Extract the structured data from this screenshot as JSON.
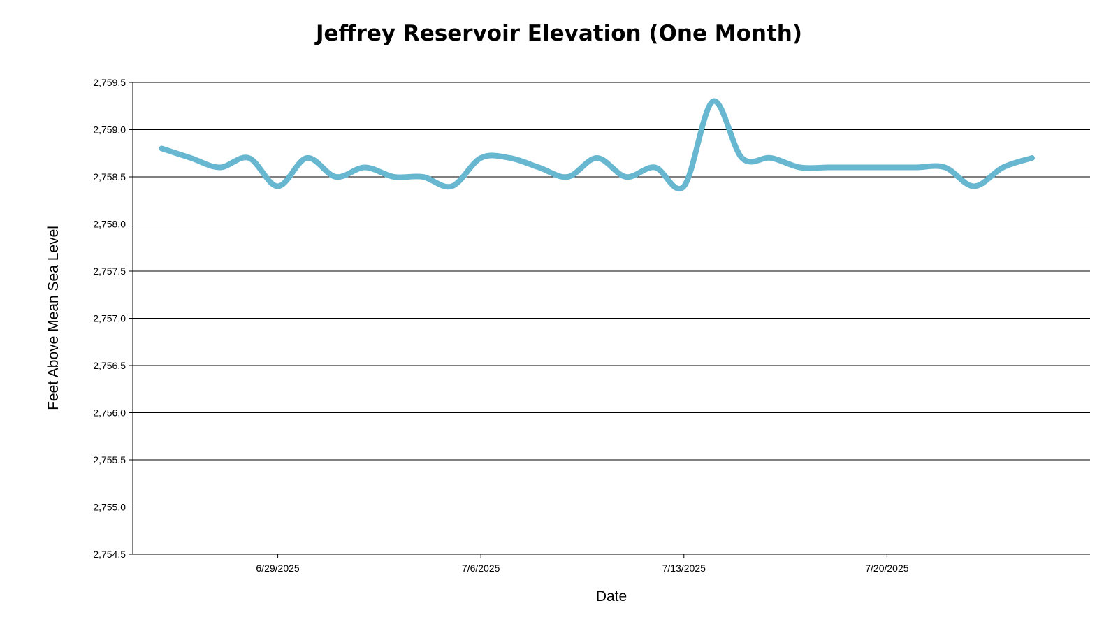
{
  "chart_data": {
    "type": "line",
    "title": "Jeffrey Reservoir Elevation (One Month)",
    "xlabel": "Date",
    "ylabel": "Feet Above Mean Sea Level",
    "ylim": [
      2754.5,
      2759.5
    ],
    "xlim": [
      "2025-06-24",
      "2025-07-27"
    ],
    "grid": "horizontal",
    "line_color": "#67b7d1",
    "yticks": [
      "2,754.5",
      "2,755.0",
      "2,755.5",
      "2,756.0",
      "2,756.5",
      "2,757.0",
      "2,757.5",
      "2,758.0",
      "2,758.5",
      "2,759.0",
      "2,759.5"
    ],
    "xticks": [
      {
        "date": "2025-06-29",
        "label": "6/29/2025"
      },
      {
        "date": "2025-07-06",
        "label": "7/6/2025"
      },
      {
        "date": "2025-07-13",
        "label": "7/13/2025"
      },
      {
        "date": "2025-07-20",
        "label": "7/20/2025"
      }
    ],
    "series": [
      {
        "points": [
          [
            "2025-06-25",
            2758.8
          ],
          [
            "2025-06-26",
            2758.7
          ],
          [
            "2025-06-27",
            2758.6
          ],
          [
            "2025-06-28",
            2758.7
          ],
          [
            "2025-06-29",
            2758.4
          ],
          [
            "2025-06-30",
            2758.7
          ],
          [
            "2025-07-01",
            2758.5
          ],
          [
            "2025-07-02",
            2758.6
          ],
          [
            "2025-07-03",
            2758.5
          ],
          [
            "2025-07-04",
            2758.5
          ],
          [
            "2025-07-05",
            2758.4
          ],
          [
            "2025-07-06",
            2758.7
          ],
          [
            "2025-07-07",
            2758.7
          ],
          [
            "2025-07-08",
            2758.6
          ],
          [
            "2025-07-09",
            2758.5
          ],
          [
            "2025-07-10",
            2758.7
          ],
          [
            "2025-07-11",
            2758.5
          ],
          [
            "2025-07-12",
            2758.6
          ],
          [
            "2025-07-13",
            2758.4
          ],
          [
            "2025-07-14",
            2759.3
          ],
          [
            "2025-07-15",
            2758.7
          ],
          [
            "2025-07-16",
            2758.7
          ],
          [
            "2025-07-17",
            2758.6
          ],
          [
            "2025-07-18",
            2758.6
          ],
          [
            "2025-07-19",
            2758.6
          ],
          [
            "2025-07-20",
            2758.6
          ],
          [
            "2025-07-21",
            2758.6
          ],
          [
            "2025-07-22",
            2758.6
          ],
          [
            "2025-07-23",
            2758.4
          ],
          [
            "2025-07-24",
            2758.6
          ],
          [
            "2025-07-25",
            2758.7
          ]
        ]
      }
    ]
  }
}
